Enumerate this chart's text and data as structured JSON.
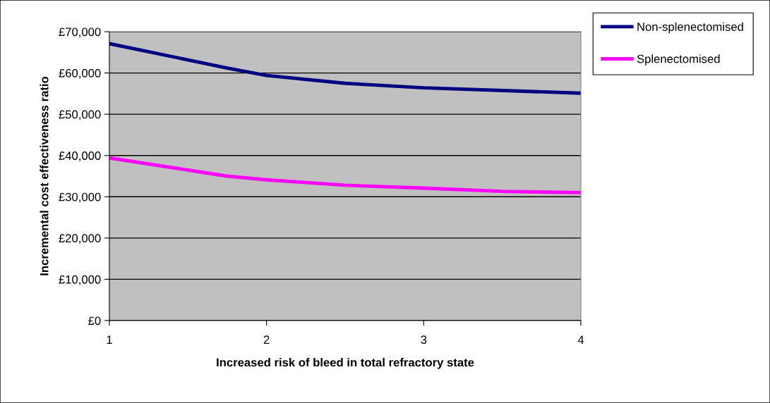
{
  "chart_data": {
    "type": "line",
    "xlabel": "Increased risk of bleed in total refractory state",
    "ylabel": "Incremental cost effectiveness ratio",
    "series": [
      {
        "name": "Non-splenectomised",
        "color": "#000080",
        "x": [
          1,
          1.75,
          2,
          2.5,
          3,
          4
        ],
        "values": [
          67100,
          61200,
          59400,
          57500,
          56400,
          55100
        ]
      },
      {
        "name": "Splenectomised",
        "color": "#ff00ff",
        "x": [
          1,
          1.75,
          2,
          2.5,
          3,
          3.5,
          4
        ],
        "values": [
          39400,
          35000,
          34100,
          32800,
          32100,
          31300,
          31000
        ]
      }
    ],
    "xlim": [
      1,
      4
    ],
    "xticks": [
      1,
      2,
      3,
      4
    ],
    "ylim": [
      0,
      70000
    ],
    "yticks": [
      {
        "value": 0,
        "label": "£0"
      },
      {
        "value": 10000,
        "label": "£10,000"
      },
      {
        "value": 20000,
        "label": "£20,000"
      },
      {
        "value": 30000,
        "label": "£30,000"
      },
      {
        "value": 40000,
        "label": "£40,000"
      },
      {
        "value": 50000,
        "label": "£50,000"
      },
      {
        "value": 60000,
        "label": "£60,000"
      },
      {
        "value": 70000,
        "label": "£70,000"
      }
    ],
    "grid": "y",
    "legend": "right",
    "marker": "none",
    "line_style": "solid"
  }
}
